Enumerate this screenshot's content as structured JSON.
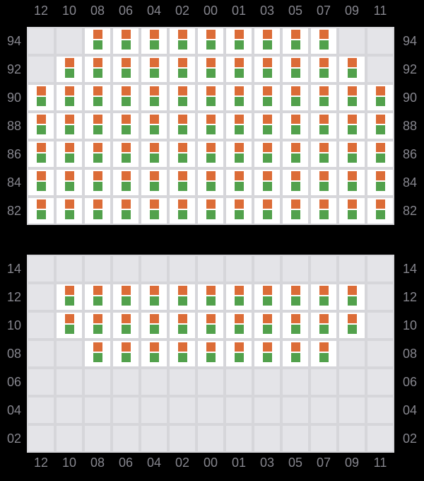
{
  "colors": {
    "background": "#000000",
    "label": "#86868E",
    "grid_line": "#D6D6DA",
    "empty_cell": "#E4E4E8",
    "filled_cell": "#FFFFFF",
    "marker_top": "#DC6C37",
    "marker_bottom": "#52A14C"
  },
  "chart_data": {
    "type": "heatmap",
    "title": "",
    "columns": [
      "12",
      "10",
      "08",
      "06",
      "04",
      "02",
      "00",
      "01",
      "03",
      "05",
      "07",
      "09",
      "11"
    ],
    "axis": {
      "column_labels_top": true,
      "column_labels_bottom": true,
      "row_labels_left": true,
      "row_labels_right": true
    },
    "cell_markers": [
      "orange-square",
      "green-square"
    ],
    "cell_values_legend": "1 = cell present (white, contains orange square above green square), 0 = blank gray cell",
    "panels": [
      {
        "name": "upper",
        "rows": [
          "94",
          "92",
          "90",
          "88",
          "86",
          "84",
          "82"
        ],
        "cells": [
          [
            0,
            0,
            1,
            1,
            1,
            1,
            1,
            1,
            1,
            1,
            1,
            0,
            0
          ],
          [
            0,
            1,
            1,
            1,
            1,
            1,
            1,
            1,
            1,
            1,
            1,
            1,
            0
          ],
          [
            1,
            1,
            1,
            1,
            1,
            1,
            1,
            1,
            1,
            1,
            1,
            1,
            1
          ],
          [
            1,
            1,
            1,
            1,
            1,
            1,
            1,
            1,
            1,
            1,
            1,
            1,
            1
          ],
          [
            1,
            1,
            1,
            1,
            1,
            1,
            1,
            1,
            1,
            1,
            1,
            1,
            1
          ],
          [
            1,
            1,
            1,
            1,
            1,
            1,
            1,
            1,
            1,
            1,
            1,
            1,
            1
          ],
          [
            1,
            1,
            1,
            1,
            1,
            1,
            1,
            1,
            1,
            1,
            1,
            1,
            1
          ]
        ]
      },
      {
        "name": "lower",
        "rows": [
          "14",
          "12",
          "10",
          "08",
          "06",
          "04",
          "02"
        ],
        "cells": [
          [
            0,
            0,
            0,
            0,
            0,
            0,
            0,
            0,
            0,
            0,
            0,
            0,
            0
          ],
          [
            0,
            1,
            1,
            1,
            1,
            1,
            1,
            1,
            1,
            1,
            1,
            1,
            0
          ],
          [
            0,
            1,
            1,
            1,
            1,
            1,
            1,
            1,
            1,
            1,
            1,
            1,
            0
          ],
          [
            0,
            0,
            1,
            1,
            1,
            1,
            1,
            1,
            1,
            1,
            1,
            0,
            0
          ],
          [
            0,
            0,
            0,
            0,
            0,
            0,
            0,
            0,
            0,
            0,
            0,
            0,
            0
          ],
          [
            0,
            0,
            0,
            0,
            0,
            0,
            0,
            0,
            0,
            0,
            0,
            0,
            0
          ],
          [
            0,
            0,
            0,
            0,
            0,
            0,
            0,
            0,
            0,
            0,
            0,
            0,
            0
          ]
        ]
      }
    ]
  }
}
